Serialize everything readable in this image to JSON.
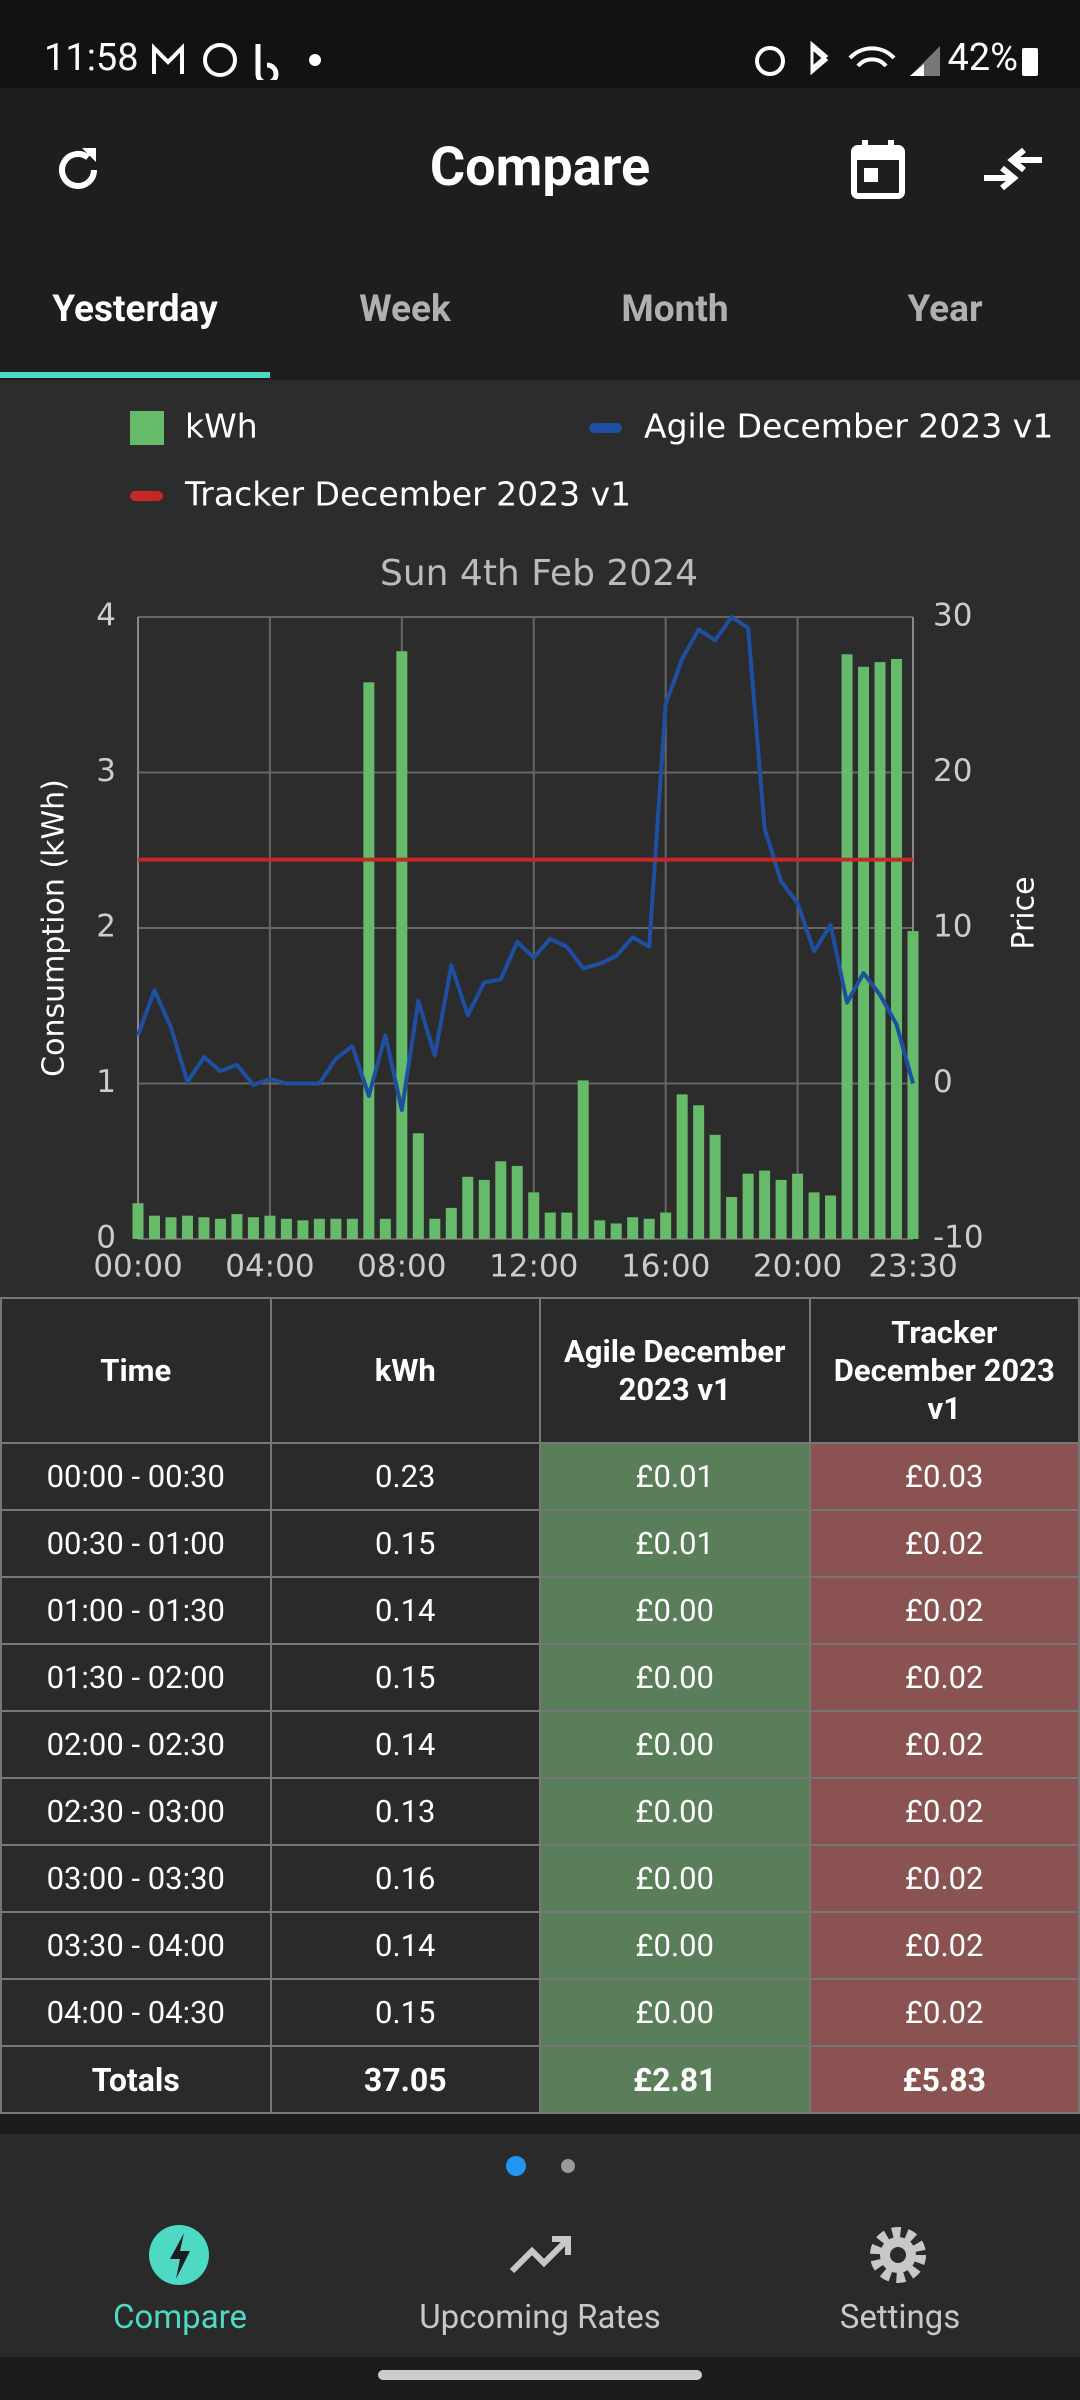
{
  "status_bar": {
    "time": "11:58",
    "battery": "42%"
  },
  "header": {
    "title": "Compare"
  },
  "tabs": [
    "Yesterday",
    "Week",
    "Month",
    "Year"
  ],
  "chart_data": {
    "type": "combo",
    "title": "Sun 4th Feb 2024",
    "ylabel": "Consumption (kWh)",
    "y2label": "Price",
    "categories": [
      "00:00",
      null,
      null,
      null,
      null,
      null,
      null,
      null,
      "04:00",
      null,
      null,
      null,
      null,
      null,
      null,
      null,
      "08:00",
      null,
      null,
      null,
      null,
      null,
      null,
      null,
      "12:00",
      null,
      null,
      null,
      null,
      null,
      null,
      null,
      "16:00",
      null,
      null,
      null,
      null,
      null,
      null,
      null,
      "20:00",
      null,
      null,
      null,
      null,
      null,
      null,
      "23:30"
    ],
    "ylim": [
      0,
      4
    ],
    "yticks": [
      0,
      1,
      2,
      3,
      4
    ],
    "y2lim": [
      -10,
      30
    ],
    "y2ticks": [
      -10,
      0,
      10,
      20,
      30
    ],
    "grid": true,
    "series": [
      {
        "name": "kWh",
        "type": "bar",
        "color": "#66bb6a",
        "values": [
          0.23,
          0.15,
          0.14,
          0.15,
          0.14,
          0.13,
          0.16,
          0.14,
          0.15,
          0.13,
          0.12,
          0.13,
          0.13,
          0.13,
          3.58,
          0.13,
          3.78,
          0.68,
          0.13,
          0.2,
          0.4,
          0.38,
          0.5,
          0.47,
          0.3,
          0.17,
          0.17,
          1.02,
          0.12,
          0.1,
          0.14,
          0.13,
          0.17,
          0.93,
          0.86,
          0.67,
          0.27,
          0.42,
          0.44,
          0.38,
          0.42,
          0.3,
          0.28,
          3.76,
          3.68,
          3.71,
          3.73,
          1.98
        ]
      },
      {
        "name": "Agile December 2023 v1",
        "type": "line",
        "axis": "y2",
        "color": "#1e4fa0",
        "values": [
          3.1,
          6.0,
          3.6,
          0.1,
          1.7,
          0.8,
          1.2,
          -0.1,
          0.3,
          0.0,
          0.0,
          0.0,
          1.6,
          2.4,
          -0.8,
          3.1,
          -1.7,
          5.3,
          1.8,
          7.6,
          4.4,
          6.5,
          6.7,
          9.1,
          8.1,
          9.3,
          8.8,
          7.4,
          7.7,
          8.2,
          9.4,
          8.8,
          24.4,
          27.3,
          29.2,
          28.5,
          30.0,
          29.3,
          16.4,
          13.0,
          11.6,
          8.5,
          10.2,
          5.2,
          7.1,
          5.7,
          3.8,
          0.0
        ]
      },
      {
        "name": "Tracker December 2023 v1",
        "type": "line",
        "axis": "y2",
        "color": "#c62828",
        "values": [
          14.4,
          14.4,
          14.4,
          14.4,
          14.4,
          14.4,
          14.4,
          14.4,
          14.4,
          14.4,
          14.4,
          14.4,
          14.4,
          14.4,
          14.4,
          14.4,
          14.4,
          14.4,
          14.4,
          14.4,
          14.4,
          14.4,
          14.4,
          14.4,
          14.4,
          14.4,
          14.4,
          14.4,
          14.4,
          14.4,
          14.4,
          14.4,
          14.4,
          14.4,
          14.4,
          14.4,
          14.4,
          14.4,
          14.4,
          14.4,
          14.4,
          14.4,
          14.4,
          14.4,
          14.4,
          14.4,
          14.4,
          14.4
        ]
      }
    ]
  },
  "table": {
    "headers": [
      "Time",
      "kWh",
      "Agile December 2023 v1",
      "Tracker December 2023 v1"
    ],
    "rows": [
      [
        "00:00 - 00:30",
        "0.23",
        "£0.01",
        "£0.03"
      ],
      [
        "00:30 - 01:00",
        "0.15",
        "£0.01",
        "£0.02"
      ],
      [
        "01:00 - 01:30",
        "0.14",
        "£0.00",
        "£0.02"
      ],
      [
        "01:30 - 02:00",
        "0.15",
        "£0.00",
        "£0.02"
      ],
      [
        "02:00 - 02:30",
        "0.14",
        "£0.00",
        "£0.02"
      ],
      [
        "02:30 - 03:00",
        "0.13",
        "£0.00",
        "£0.02"
      ],
      [
        "03:00 - 03:30",
        "0.16",
        "£0.00",
        "£0.02"
      ],
      [
        "03:30 - 04:00",
        "0.14",
        "£0.00",
        "£0.02"
      ],
      [
        "04:00 - 04:30",
        "0.15",
        "£0.00",
        "£0.02"
      ]
    ],
    "totals": [
      "Totals",
      "37.05",
      "£2.81",
      "£5.83"
    ]
  },
  "nav": [
    "Compare",
    "Upcoming Rates",
    "Settings"
  ]
}
